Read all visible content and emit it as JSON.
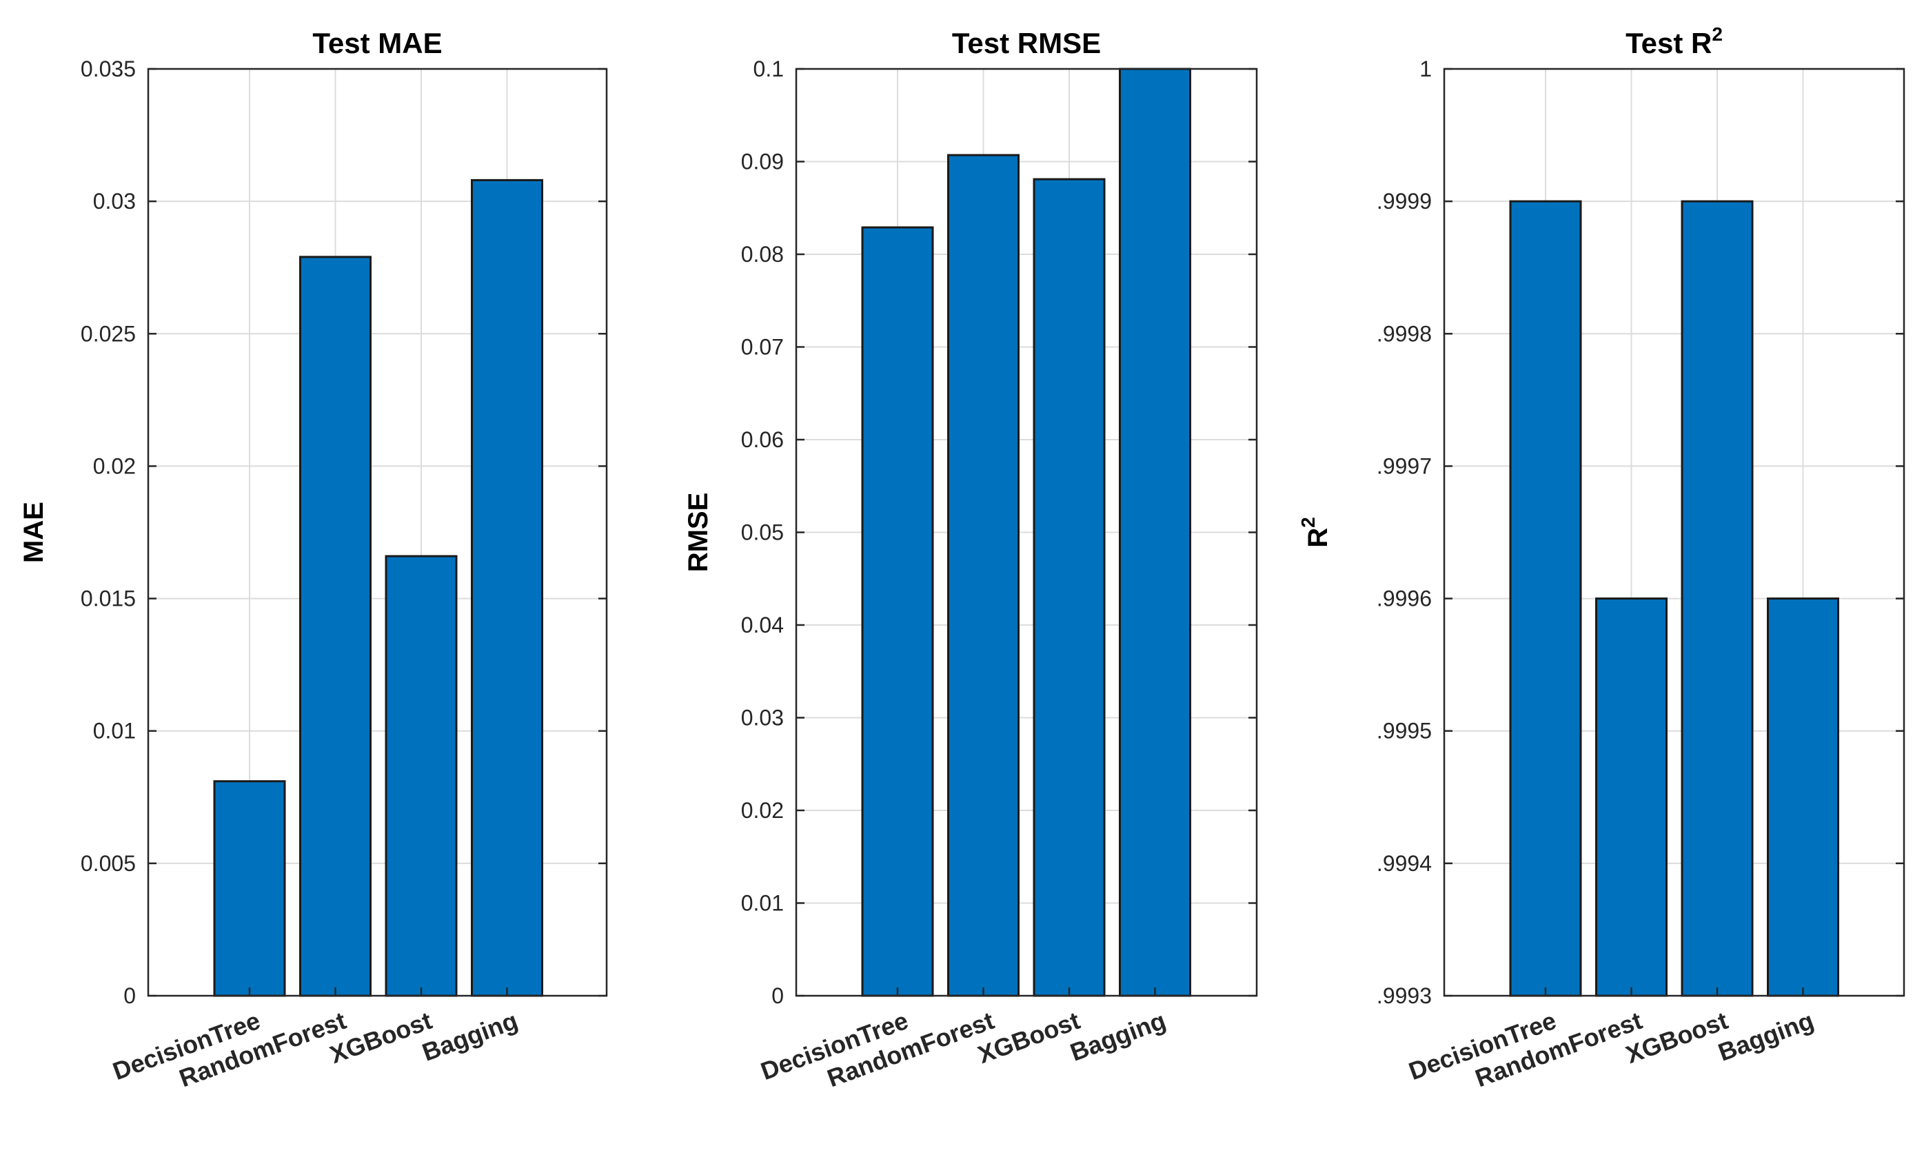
{
  "chart_data": [
    {
      "type": "bar",
      "title": "Test MAE",
      "title_sup": "",
      "xlabel": "",
      "ylabel": "MAE",
      "ylabel_sup": "",
      "categories": [
        "DecisionTree",
        "RandomForest",
        "XGBoost",
        "Bagging"
      ],
      "values": [
        0.0081,
        0.0279,
        0.0166,
        0.0308
      ],
      "ylim": [
        0,
        0.035
      ],
      "yticks": [
        "0",
        "0.005",
        "0.01",
        "0.015",
        "0.02",
        "0.025",
        "0.03",
        "0.035"
      ],
      "grid": true,
      "bar_color": "#0072BD"
    },
    {
      "type": "bar",
      "title": "Test RMSE",
      "title_sup": "",
      "xlabel": "",
      "ylabel": "RMSE",
      "ylabel_sup": "",
      "categories": [
        "DecisionTree",
        "RandomForest",
        "XGBoost",
        "Bagging"
      ],
      "values": [
        0.0829,
        0.0907,
        0.0881,
        0.1
      ],
      "ylim": [
        0,
        0.1
      ],
      "yticks": [
        "0",
        "0.01",
        "0.02",
        "0.03",
        "0.04",
        "0.05",
        "0.06",
        "0.07",
        "0.08",
        "0.09",
        "0.1"
      ],
      "grid": true,
      "bar_color": "#0072BD"
    },
    {
      "type": "bar",
      "title": "Test R",
      "title_sup": "2",
      "xlabel": "",
      "ylabel": "R",
      "ylabel_sup": "2",
      "categories": [
        "DecisionTree",
        "RandomForest",
        "XGBoost",
        "Bagging"
      ],
      "values": [
        0.9999,
        0.9996,
        0.9999,
        0.9996
      ],
      "ylim": [
        0.9993,
        1
      ],
      "yticks": [
        ".9993",
        ".9994",
        ".9995",
        ".9996",
        ".9997",
        ".9998",
        ".9999",
        "1"
      ],
      "grid": true,
      "bar_color": "#0072BD"
    }
  ]
}
